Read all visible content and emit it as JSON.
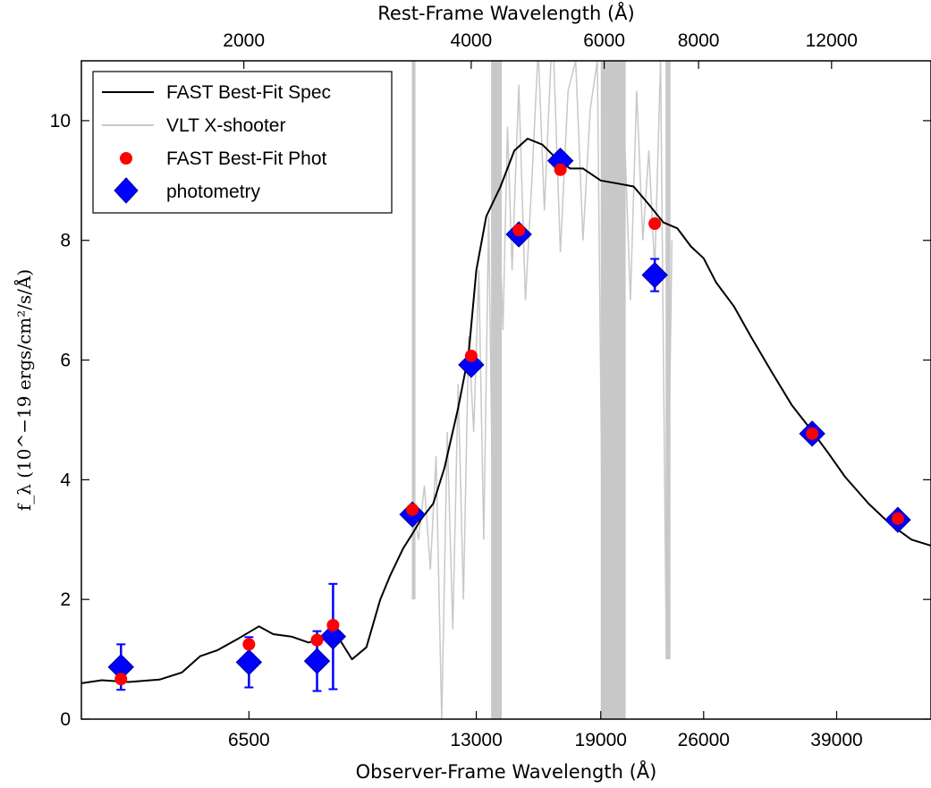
{
  "chart_data": {
    "type": "scatter",
    "title": "",
    "xlabel": "Observer-Frame Wavelength (Å)",
    "xlabel_top": "Rest-Frame Wavelength (Å)",
    "ylabel": "f_λ (10^−19 ergs/cm²/s/Å)",
    "x_scale": "log",
    "xlim": [
      3900,
      52000
    ],
    "ylim": [
      0,
      11
    ],
    "x_ticks": [
      6500,
      13000,
      19000,
      26000,
      39000
    ],
    "x_tick_labels": [
      "6500",
      "13000",
      "19000",
      "26000",
      "39000"
    ],
    "top_ticks_observed": [
      6400,
      12800,
      19200,
      25600,
      38400
    ],
    "top_tick_labels": [
      "2000",
      "4000",
      "6000",
      "8000",
      "12000"
    ],
    "y_ticks": [
      0,
      2,
      4,
      6,
      8,
      10
    ],
    "y_tick_labels": [
      "0",
      "2",
      "4",
      "6",
      "8",
      "10"
    ],
    "grid": false,
    "legend_position": "top-left",
    "legend": [
      {
        "label": "FAST Best-Fit Spec",
        "marker": "line",
        "color": "#000000"
      },
      {
        "label": "VLT X-shooter",
        "marker": "line",
        "color": "#c8c8c8"
      },
      {
        "label": "FAST Best-Fit Phot",
        "marker": "circle",
        "color": "#ff0000"
      },
      {
        "label": "photometry",
        "marker": "diamond",
        "color": "#0000ff"
      }
    ],
    "series": [
      {
        "name": "FAST Best-Fit Spec",
        "type": "line",
        "color": "#000000",
        "x": [
          3900,
          4150,
          4500,
          4950,
          5300,
          5600,
          5900,
          6300,
          6700,
          7000,
          7400,
          7800,
          8100,
          8300,
          8600,
          8900,
          9300,
          9700,
          10000,
          10400,
          10700,
          11000,
          11400,
          11800,
          12300,
          12700,
          13000,
          13400,
          14000,
          14600,
          15200,
          15900,
          16500,
          17300,
          18000,
          19000,
          20000,
          21000,
          22000,
          23000,
          24000,
          25000,
          26000,
          27000,
          28500,
          30000,
          32000,
          34000,
          36000,
          38000,
          40000,
          43000,
          46000,
          49000,
          52000
        ],
        "y": [
          0.6,
          0.65,
          0.62,
          0.66,
          0.78,
          1.05,
          1.15,
          1.35,
          1.55,
          1.42,
          1.38,
          1.28,
          1.35,
          1.4,
          1.3,
          1.0,
          1.2,
          2.0,
          2.4,
          2.85,
          3.1,
          3.35,
          3.6,
          4.2,
          5.2,
          6.1,
          7.5,
          8.4,
          8.9,
          9.5,
          9.7,
          9.6,
          9.4,
          9.2,
          9.2,
          9.0,
          8.95,
          8.9,
          8.6,
          8.3,
          8.2,
          7.9,
          7.7,
          7.3,
          6.9,
          6.4,
          5.8,
          5.25,
          4.85,
          4.45,
          4.05,
          3.6,
          3.25,
          3.0,
          2.9
        ]
      },
      {
        "name": "FAST Best-Fit Phot",
        "type": "scatter",
        "color": "#ff0000",
        "x": [
          4400,
          6500,
          8000,
          8400,
          10700,
          12800,
          14800,
          16800,
          22400,
          36200,
          47000
        ],
        "y": [
          0.67,
          1.25,
          1.32,
          1.57,
          3.5,
          6.07,
          8.17,
          9.18,
          8.28,
          4.77,
          3.35
        ]
      },
      {
        "name": "photometry",
        "type": "scatter",
        "color": "#0000ff",
        "x": [
          4400,
          6500,
          8000,
          8400,
          10700,
          12800,
          14800,
          16800,
          22400,
          36200,
          47000
        ],
        "y": [
          0.87,
          0.95,
          0.97,
          1.38,
          3.42,
          5.92,
          8.1,
          9.33,
          7.42,
          4.77,
          3.33
        ],
        "yerr": [
          0.38,
          0.42,
          0.5,
          0.88,
          0.12,
          0.12,
          0.12,
          0.12,
          0.27,
          0.1,
          0.1
        ]
      }
    ],
    "xshooter": {
      "name": "VLT X-shooter",
      "type": "line",
      "color": "#c8c8c8",
      "x": [
        10700,
        10900,
        11100,
        11300,
        11500,
        11700,
        11900,
        12100,
        12300,
        12500,
        12700,
        12900,
        13100,
        13300,
        13500,
        13700,
        13900,
        14100,
        14300,
        14500,
        14800,
        15100,
        15400,
        15700,
        16000,
        16400,
        16800,
        17200,
        17600,
        18000,
        18400,
        18800,
        19200,
        19600,
        20000,
        20400,
        20800,
        21200,
        21600,
        22000,
        22400,
        22800,
        23200,
        23600
      ],
      "y": [
        3.6,
        3.0,
        3.9,
        2.5,
        4.4,
        0.0,
        4.8,
        1.5,
        5.6,
        2.0,
        6.4,
        4.8,
        7.5,
        3.0,
        8.4,
        2.5,
        9.0,
        6.5,
        9.9,
        7.5,
        10.6,
        7.0,
        9.0,
        11.2,
        8.5,
        11.6,
        7.8,
        10.5,
        11.0,
        8.0,
        10.2,
        11.0,
        0.0,
        11.0,
        0.0,
        10.0,
        7.0,
        10.5,
        8.0,
        9.5,
        7.5,
        11.0,
        1.2,
        8.0
      ],
      "band_x": [
        [
          10680,
          10800
        ],
        [
          13600,
          14050
        ],
        [
          19000,
          20500
        ],
        [
          23150,
          23500
        ]
      ],
      "band_ymin": [
        2.0,
        0.0,
        0.0,
        1.0
      ],
      "band_ymax": [
        11.0,
        11.0,
        11.0,
        11.0
      ]
    }
  }
}
